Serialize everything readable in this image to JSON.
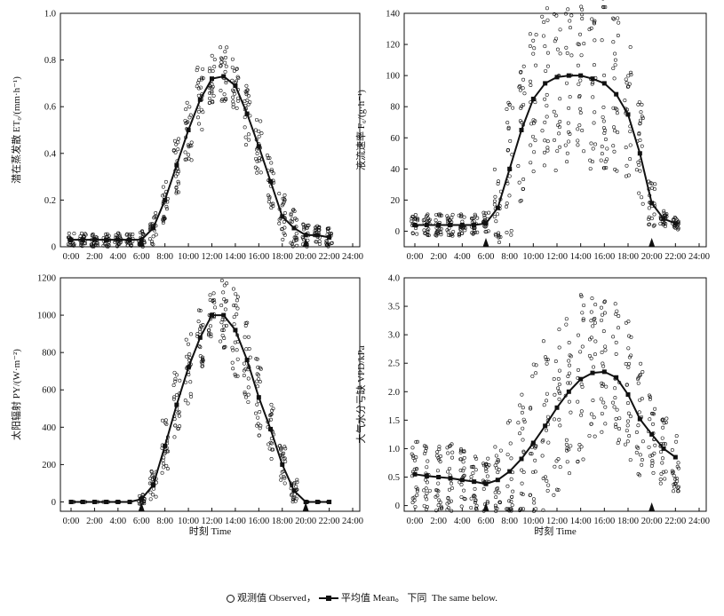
{
  "chart_data": [
    {
      "type": "line",
      "panel": "top-left",
      "ylabel": "潜在蒸发散 ET₀/(mm·h⁻¹)",
      "xlabel": "",
      "ylim": [
        0,
        1.0
      ],
      "yticks": [
        "0",
        "0.2",
        "0.4",
        "0.6",
        "0.8",
        "1.0"
      ],
      "ytick_values": [
        0,
        0.2,
        0.4,
        0.6,
        0.8,
        1.0
      ],
      "xticks": [
        "0:00",
        "2:00",
        "4:00",
        "6:00",
        "8:00",
        "10:00",
        "12:00",
        "14:00",
        "16:00",
        "18:00",
        "20:00",
        "22:00",
        "24:00"
      ],
      "x": [
        0,
        1,
        2,
        3,
        4,
        5,
        6,
        7,
        8,
        9,
        10,
        11,
        12,
        13,
        14,
        15,
        16,
        17,
        18,
        19,
        20,
        21,
        22
      ],
      "mean": [
        0.03,
        0.03,
        0.03,
        0.03,
        0.03,
        0.03,
        0.03,
        0.08,
        0.2,
        0.35,
        0.5,
        0.63,
        0.72,
        0.73,
        0.69,
        0.57,
        0.43,
        0.28,
        0.13,
        0.08,
        0.05,
        0.05,
        0.04
      ],
      "spread": [
        0.03,
        0.03,
        0.03,
        0.03,
        0.03,
        0.03,
        0.04,
        0.07,
        0.1,
        0.12,
        0.13,
        0.14,
        0.12,
        0.13,
        0.12,
        0.14,
        0.12,
        0.12,
        0.1,
        0.08,
        0.05,
        0.04,
        0.04
      ],
      "arrows_at": [
        6,
        20
      ]
    },
    {
      "type": "line",
      "panel": "top-right",
      "ylabel": "液流速率 F₆/(g·h⁻¹)",
      "xlabel": "",
      "ylim": [
        -10,
        140
      ],
      "yticks": [
        "0",
        "20",
        "40",
        "60",
        "80",
        "100",
        "120",
        "140"
      ],
      "ytick_values": [
        0,
        20,
        40,
        60,
        80,
        100,
        120,
        140
      ],
      "xticks": [
        "0:00",
        "2:00",
        "4:00",
        "6:00",
        "8:00",
        "10:00",
        "12:00",
        "14:00",
        "16:00",
        "18:00",
        "20:00",
        "22:00",
        "24:00"
      ],
      "x": [
        0,
        1,
        2,
        3,
        4,
        5,
        6,
        7,
        8,
        9,
        10,
        11,
        12,
        13,
        14,
        15,
        16,
        17,
        18,
        19,
        20,
        21,
        22
      ],
      "mean": [
        4,
        4,
        4,
        4,
        4,
        4,
        5,
        15,
        40,
        65,
        85,
        95,
        99,
        100,
        100,
        98,
        95,
        88,
        75,
        50,
        18,
        8,
        5
      ],
      "spread": [
        7,
        7,
        7,
        7,
        7,
        7,
        7,
        25,
        45,
        50,
        50,
        55,
        60,
        60,
        60,
        60,
        55,
        50,
        45,
        35,
        15,
        5,
        4
      ],
      "arrows_at": [
        6,
        20
      ]
    },
    {
      "type": "line",
      "panel": "bottom-left",
      "ylabel": "太阳辐射 PY/(W·m⁻²)",
      "xlabel": "时刻 Time",
      "ylim": [
        -50,
        1200
      ],
      "yticks": [
        "0",
        "200",
        "400",
        "600",
        "800",
        "1000",
        "1200"
      ],
      "ytick_values": [
        0,
        200,
        400,
        600,
        800,
        1000,
        1200
      ],
      "xticks": [
        "0:00",
        "2:00",
        "4:00",
        "6:00",
        "8:00",
        "10:00",
        "12:00",
        "14:00",
        "16:00",
        "18:00",
        "20:00",
        "22:00",
        "24:00"
      ],
      "x": [
        0,
        1,
        2,
        3,
        4,
        5,
        6,
        7,
        8,
        9,
        10,
        11,
        12,
        13,
        14,
        15,
        16,
        17,
        18,
        19,
        20,
        21,
        22
      ],
      "mean": [
        0,
        0,
        0,
        0,
        0,
        0,
        15,
        90,
        300,
        520,
        720,
        880,
        1000,
        1000,
        920,
        760,
        560,
        390,
        200,
        60,
        0,
        0,
        0
      ],
      "spread": [
        0,
        0,
        0,
        0,
        0,
        0,
        30,
        80,
        150,
        180,
        200,
        180,
        120,
        200,
        250,
        250,
        220,
        170,
        120,
        60,
        0,
        0,
        0
      ],
      "arrows_at": [
        6,
        20
      ]
    },
    {
      "type": "line",
      "panel": "bottom-right",
      "ylabel": "大气水分亏缺 VPD/kPa",
      "xlabel": "时刻 Time",
      "ylim": [
        -0.1,
        4.0
      ],
      "yticks": [
        "0",
        "0.5",
        "1.0",
        "1.5",
        "2.0",
        "2.5",
        "3.0",
        "3.5",
        "4.0"
      ],
      "ytick_values": [
        0,
        0.5,
        1.0,
        1.5,
        2.0,
        2.5,
        3.0,
        3.5,
        4.0
      ],
      "xticks": [
        "0:00",
        "2:00",
        "4:00",
        "6:00",
        "8:00",
        "10:00",
        "12:00",
        "14:00",
        "16:00",
        "18:00",
        "20:00",
        "22:00",
        "24:00"
      ],
      "x": [
        0,
        1,
        2,
        3,
        4,
        5,
        6,
        7,
        8,
        9,
        10,
        11,
        12,
        13,
        14,
        15,
        16,
        17,
        18,
        19,
        20,
        21,
        22
      ],
      "mean": [
        0.55,
        0.52,
        0.5,
        0.48,
        0.45,
        0.42,
        0.38,
        0.45,
        0.6,
        0.82,
        1.1,
        1.4,
        1.72,
        2.0,
        2.22,
        2.33,
        2.35,
        2.25,
        1.95,
        1.52,
        1.25,
        1.0,
        0.85
      ],
      "spread": [
        0.6,
        0.6,
        0.6,
        0.6,
        0.55,
        0.5,
        0.5,
        0.6,
        0.9,
        1.2,
        1.4,
        1.6,
        1.6,
        1.6,
        1.5,
        1.4,
        1.3,
        1.3,
        1.3,
        1.0,
        0.8,
        0.7,
        0.6
      ],
      "arrows_at": [
        6,
        20
      ]
    }
  ],
  "legend": {
    "observed": "观测值 Observed，",
    "mean": "平均值 Mean。 下同  The same below."
  }
}
